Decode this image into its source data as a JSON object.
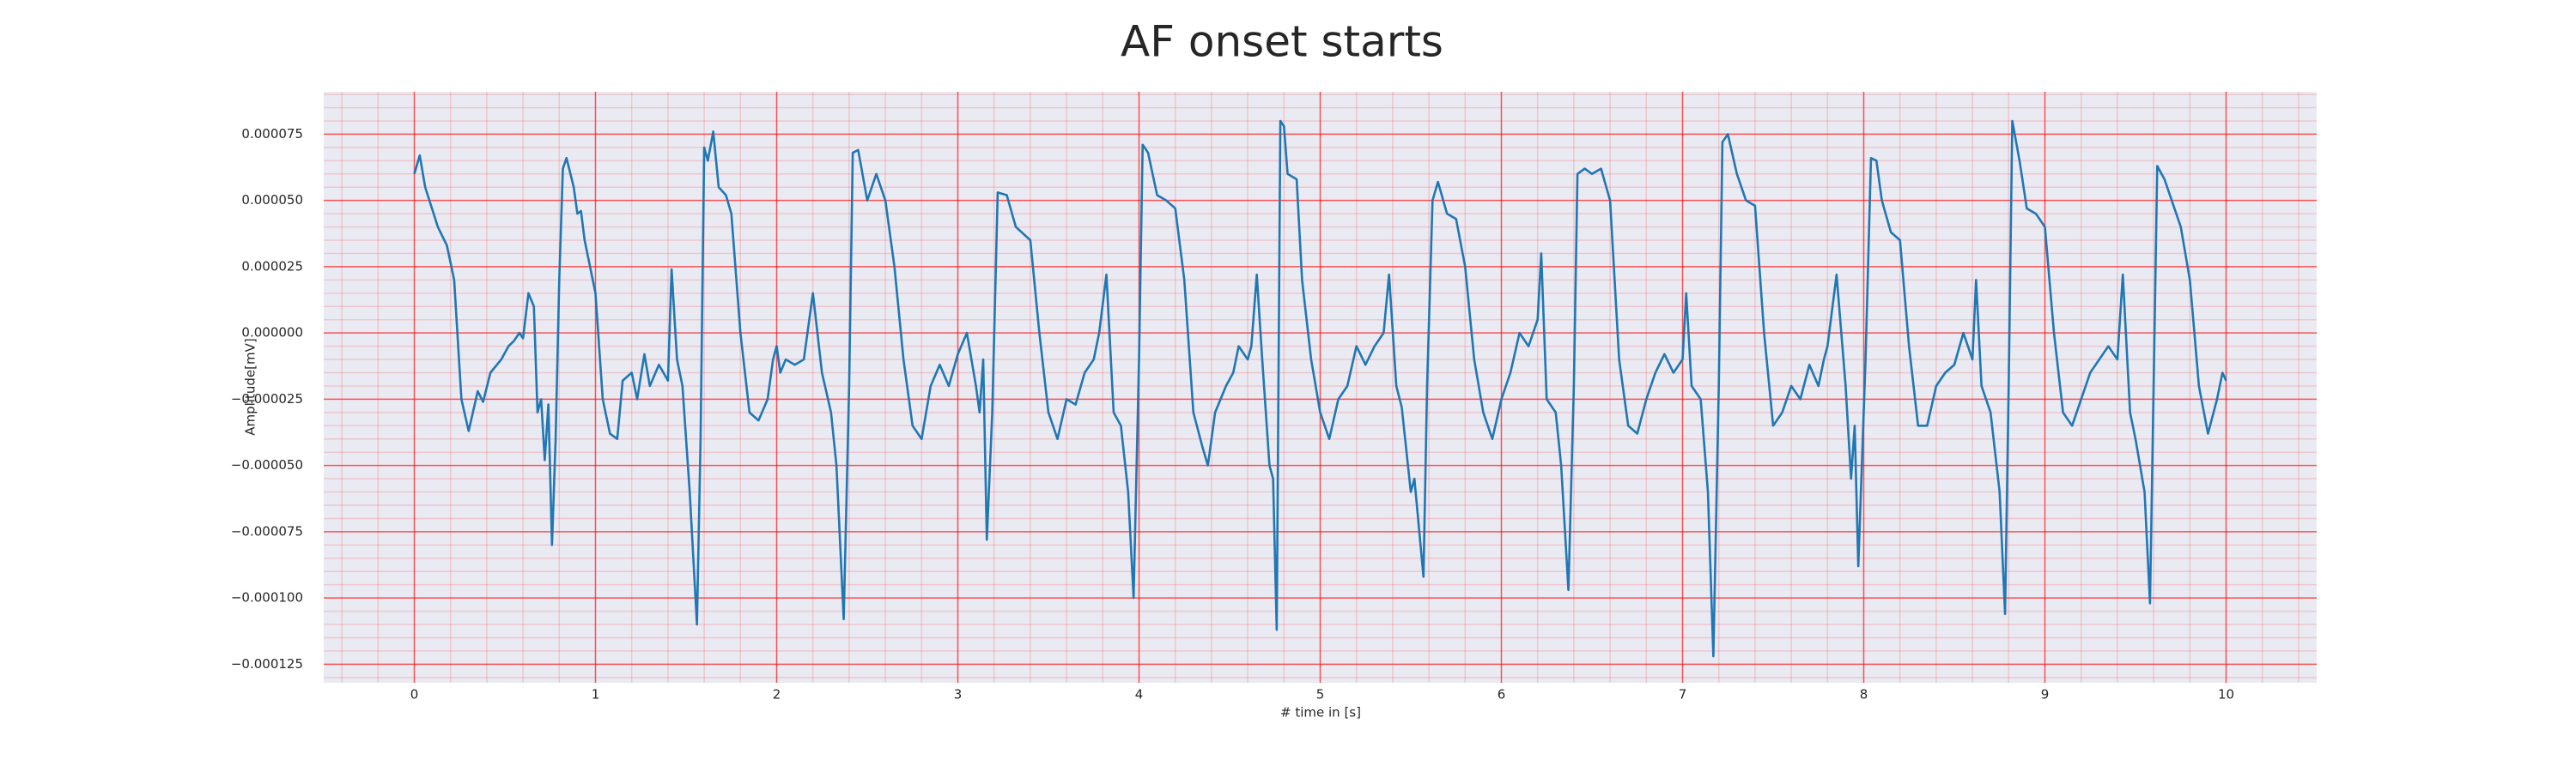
{
  "chart_data": {
    "type": "line",
    "title": "AF onset starts",
    "x_label": "# time in [s]",
    "y_label": "Amplitude[mV]",
    "color": "#1f77b4",
    "grid": true,
    "grid_color": "#ff0000",
    "xlim": [
      -0.5,
      10.5
    ],
    "ylim": [
      -0.000132,
      9.1e-05
    ],
    "xticks": [
      0,
      1,
      2,
      3,
      4,
      5,
      6,
      7,
      8,
      9,
      10
    ],
    "yticks": [
      {
        "value": -0.000125,
        "label": "−0.000125"
      },
      {
        "value": -0.0001,
        "label": "−0.000100"
      },
      {
        "value": -7.5e-05,
        "label": "−0.000075"
      },
      {
        "value": -5e-05,
        "label": "−0.000050"
      },
      {
        "value": -2.5e-05,
        "label": "−0.000025"
      },
      {
        "value": 0,
        "label": "0.000000"
      },
      {
        "value": 2.5e-05,
        "label": "0.000025"
      },
      {
        "value": 5e-05,
        "label": "0.000050"
      },
      {
        "value": 7.5e-05,
        "label": "0.000075"
      }
    ],
    "x": [
      0,
      0.03,
      0.06,
      0.13,
      0.18,
      0.22,
      0.26,
      0.3,
      0.35,
      0.38,
      0.42,
      0.48,
      0.52,
      0.55,
      0.58,
      0.6,
      0.63,
      0.66,
      0.68,
      0.7,
      0.72,
      0.74,
      0.76,
      0.78,
      0.8,
      0.82,
      0.84,
      0.88,
      0.9,
      0.92,
      0.94,
      1,
      1.04,
      1.08,
      1.12,
      1.15,
      1.2,
      1.23,
      1.27,
      1.3,
      1.35,
      1.4,
      1.42,
      1.45,
      1.48,
      1.52,
      1.56,
      1.58,
      1.6,
      1.62,
      1.65,
      1.68,
      1.72,
      1.75,
      1.8,
      1.85,
      1.9,
      1.95,
      1.98,
      2,
      2.02,
      2.05,
      2.1,
      2.15,
      2.2,
      2.25,
      2.3,
      2.33,
      2.37,
      2.4,
      2.42,
      2.45,
      2.5,
      2.55,
      2.6,
      2.65,
      2.7,
      2.75,
      2.8,
      2.85,
      2.9,
      2.95,
      3,
      3.05,
      3.1,
      3.12,
      3.14,
      3.16,
      3.19,
      3.22,
      3.27,
      3.32,
      3.4,
      3.45,
      3.5,
      3.55,
      3.6,
      3.65,
      3.7,
      3.75,
      3.78,
      3.82,
      3.86,
      3.9,
      3.94,
      3.97,
      4,
      4.02,
      4.05,
      4.1,
      4.15,
      4.2,
      4.25,
      4.3,
      4.35,
      4.38,
      4.42,
      4.48,
      4.52,
      4.55,
      4.6,
      4.62,
      4.65,
      4.68,
      4.72,
      4.74,
      4.76,
      4.78,
      4.8,
      4.82,
      4.87,
      4.9,
      4.95,
      5,
      5.05,
      5.1,
      5.15,
      5.2,
      5.25,
      5.3,
      5.35,
      5.38,
      5.42,
      5.45,
      5.5,
      5.52,
      5.57,
      5.59,
      5.62,
      5.65,
      5.7,
      5.75,
      5.8,
      5.85,
      5.9,
      5.95,
      6,
      6.05,
      6.1,
      6.15,
      6.2,
      6.22,
      6.25,
      6.3,
      6.33,
      6.37,
      6.4,
      6.42,
      6.46,
      6.5,
      6.55,
      6.6,
      6.65,
      6.7,
      6.75,
      6.8,
      6.85,
      6.9,
      6.95,
      7,
      7.02,
      7.05,
      7.1,
      7.14,
      7.17,
      7.2,
      7.22,
      7.25,
      7.3,
      7.35,
      7.4,
      7.45,
      7.5,
      7.55,
      7.6,
      7.65,
      7.7,
      7.75,
      7.78,
      7.8,
      7.85,
      7.9,
      7.93,
      7.95,
      7.97,
      8.01,
      8.04,
      8.07,
      8.1,
      8.15,
      8.2,
      8.25,
      8.3,
      8.35,
      8.4,
      8.45,
      8.5,
      8.55,
      8.6,
      8.62,
      8.65,
      8.7,
      8.75,
      8.78,
      8.8,
      8.82,
      8.86,
      8.9,
      8.95,
      9,
      9.05,
      9.1,
      9.15,
      9.2,
      9.25,
      9.3,
      9.35,
      9.4,
      9.43,
      9.47,
      9.5,
      9.55,
      9.58,
      9.6,
      9.62,
      9.66,
      9.7,
      9.75,
      9.8,
      9.85,
      9.9,
      9.95,
      9.98,
      10
    ],
    "values": [
      6e-05,
      6.7e-05,
      5.5e-05,
      4e-05,
      3.3e-05,
      2e-05,
      -2.5e-05,
      -3.7e-05,
      -2.2e-05,
      -2.6e-05,
      -1.5e-05,
      -1e-05,
      -5e-06,
      -3e-06,
      0,
      -2e-06,
      1.5e-05,
      1e-05,
      -3e-05,
      -2.5e-05,
      -4.8e-05,
      -2.7e-05,
      -8e-05,
      -4e-05,
      2e-05,
      6.2e-05,
      6.6e-05,
      5.5e-05,
      4.5e-05,
      4.6e-05,
      3.5e-05,
      1.5e-05,
      -2.5e-05,
      -3.8e-05,
      -4e-05,
      -1.8e-05,
      -1.5e-05,
      -2.5e-05,
      -8e-06,
      -2e-05,
      -1.2e-05,
      -1.8e-05,
      2.4e-05,
      -1e-05,
      -2e-05,
      -6e-05,
      -0.00011,
      -4e-05,
      7e-05,
      6.5e-05,
      7.6e-05,
      5.5e-05,
      5.2e-05,
      4.5e-05,
      0,
      -3e-05,
      -3.3e-05,
      -2.5e-05,
      -1e-05,
      -5e-06,
      -1.5e-05,
      -1e-05,
      -1.2e-05,
      -1e-05,
      1.5e-05,
      -1.5e-05,
      -3e-05,
      -5e-05,
      -0.000108,
      -2e-05,
      6.8e-05,
      6.9e-05,
      5e-05,
      6e-05,
      5e-05,
      2.5e-05,
      -1e-05,
      -3.5e-05,
      -4e-05,
      -2e-05,
      -1.2e-05,
      -2e-05,
      -8e-06,
      0,
      -2e-05,
      -3e-05,
      -1e-05,
      -7.8e-05,
      -3e-05,
      5.3e-05,
      5.2e-05,
      4e-05,
      3.5e-05,
      0,
      -3e-05,
      -4e-05,
      -2.5e-05,
      -2.7e-05,
      -1.5e-05,
      -1e-05,
      0,
      2.2e-05,
      -3e-05,
      -3.5e-05,
      -6e-05,
      -0.0001,
      -1e-05,
      7.1e-05,
      6.8e-05,
      5.2e-05,
      5e-05,
      4.7e-05,
      2e-05,
      -3e-05,
      -4.3e-05,
      -5e-05,
      -3e-05,
      -2e-05,
      -1.5e-05,
      -5e-06,
      -1e-05,
      -5e-06,
      2.2e-05,
      -1e-05,
      -5e-05,
      -5.5e-05,
      -0.000112,
      8e-05,
      7.8e-05,
      6e-05,
      5.8e-05,
      2e-05,
      -1e-05,
      -3e-05,
      -4e-05,
      -2.5e-05,
      -2e-05,
      -5e-06,
      -1.2e-05,
      -5e-06,
      0,
      2.2e-05,
      -2e-05,
      -2.8e-05,
      -6e-05,
      -5.5e-05,
      -9.2e-05,
      -2e-05,
      5e-05,
      5.7e-05,
      4.5e-05,
      4.3e-05,
      2.5e-05,
      -1e-05,
      -3e-05,
      -4e-05,
      -2.5e-05,
      -1.5e-05,
      0,
      -5e-06,
      5e-06,
      3e-05,
      -2.5e-05,
      -3e-05,
      -5e-05,
      -9.7e-05,
      -2e-05,
      6e-05,
      6.2e-05,
      6e-05,
      6.2e-05,
      5e-05,
      -1e-05,
      -3.5e-05,
      -3.8e-05,
      -2.5e-05,
      -1.5e-05,
      -8e-06,
      -1.5e-05,
      -1e-05,
      1.5e-05,
      -2e-05,
      -2.5e-05,
      -6e-05,
      -0.000122,
      -2e-05,
      7.2e-05,
      7.5e-05,
      6e-05,
      5e-05,
      4.8e-05,
      0,
      -3.5e-05,
      -3e-05,
      -2e-05,
      -2.5e-05,
      -1.2e-05,
      -2e-05,
      -1e-05,
      -5e-06,
      2.2e-05,
      -2e-05,
      -5.5e-05,
      -3.5e-05,
      -8.8e-05,
      -1e-05,
      6.6e-05,
      6.5e-05,
      5e-05,
      3.8e-05,
      3.5e-05,
      -5e-06,
      -3.5e-05,
      -3.5e-05,
      -2e-05,
      -1.5e-05,
      -1.2e-05,
      0,
      -1e-05,
      2e-05,
      -2e-05,
      -3e-05,
      -6e-05,
      -0.000106,
      -2e-05,
      8e-05,
      6.5e-05,
      4.7e-05,
      4.5e-05,
      4e-05,
      0,
      -3e-05,
      -3.5e-05,
      -2.5e-05,
      -1.5e-05,
      -1e-05,
      -5e-06,
      -1e-05,
      2.2e-05,
      -3e-05,
      -4e-05,
      -6e-05,
      -0.000102,
      -2e-05,
      6.3e-05,
      5.8e-05,
      5e-05,
      4e-05,
      2e-05,
      -2e-05,
      -3.8e-05,
      -2.5e-05,
      -1.5e-05,
      -1.8e-05
    ]
  }
}
